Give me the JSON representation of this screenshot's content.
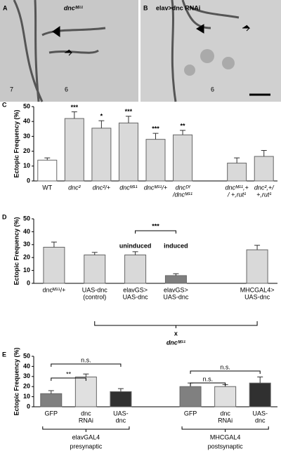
{
  "images": [
    {
      "letter": "A",
      "label": "dncᴹ¹¹",
      "segments": [
        "7",
        "6"
      ]
    },
    {
      "letter": "B",
      "label": "elav>dnc RNAi",
      "segments": [
        "6"
      ]
    }
  ],
  "chart_data": [
    {
      "type": "bar",
      "panel": "C",
      "ylabel": "Ectopic Frequency (%)",
      "categories": [
        [
          "WT"
        ],
        [
          "dnc²"
        ],
        [
          "dnc²/+"
        ],
        [
          "dncᴹ¹¹"
        ],
        [
          "dncᴹ¹¹/+"
        ],
        [
          "dncᴰᶠ",
          "/dncᴹ¹¹"
        ],
        null,
        [
          "dncᴹ¹¹,+",
          "/ +,rut¹"
        ],
        [
          "dnc²,+/",
          "+,rut¹"
        ]
      ],
      "values": [
        14,
        42,
        35.5,
        39,
        28,
        31,
        null,
        12,
        16.5
      ],
      "errors": [
        1.5,
        4.5,
        5,
        4.5,
        4,
        3,
        null,
        3.5,
        4
      ],
      "colors": [
        "#ffffff",
        "#d9d9d9",
        "#d9d9d9",
        "#d9d9d9",
        "#d9d9d9",
        "#d9d9d9",
        null,
        "#d9d9d9",
        "#d9d9d9"
      ],
      "significance": [
        null,
        "***",
        "*",
        "***",
        "***",
        "**",
        null,
        null,
        null
      ],
      "ylim": [
        0,
        50
      ],
      "yticks": [
        0,
        10,
        20,
        30,
        40,
        50
      ]
    },
    {
      "type": "bar",
      "panel": "D",
      "ylabel": "Ectopic Frequency (%)",
      "categories": [
        [
          "dncᴹ¹¹/+"
        ],
        [
          "UAS-dnc",
          "(control)"
        ],
        [
          "elavGS>",
          "UAS-dnc"
        ],
        [
          "elavGS>",
          "UAS-dnc"
        ],
        null,
        [
          "MHCGAL4>",
          "UAS-dnc"
        ]
      ],
      "values": [
        28,
        22,
        22,
        6,
        null,
        26
      ],
      "errors": [
        4,
        2,
        2.5,
        1.5,
        null,
        3.5
      ],
      "colors": [
        "#d9d9d9",
        "#d9d9d9",
        "#d9d9d9",
        "#7f7f7f",
        null,
        "#d9d9d9"
      ],
      "annotations": [
        "***"
      ],
      "condition_labels": [
        "uninduced",
        "induced"
      ],
      "cross": "x",
      "cross_genotype": "dncᴹ¹¹",
      "ylim": [
        0,
        50
      ],
      "yticks": [
        0,
        10,
        20,
        30,
        40,
        50
      ]
    },
    {
      "type": "bar",
      "panel": "E",
      "ylabel": "Ectopic Frequency (%)",
      "categories": [
        [
          "GFP"
        ],
        [
          "dnc",
          "RNAi"
        ],
        [
          "UAS-",
          "dnc"
        ],
        null,
        [
          "GFP"
        ],
        [
          "dnc",
          "RNAi"
        ],
        [
          "UAS-",
          "dnc"
        ]
      ],
      "values": [
        13,
        29.5,
        15,
        null,
        20,
        20,
        23.5
      ],
      "errors": [
        3,
        3,
        3,
        null,
        3.5,
        2,
        6
      ],
      "colors": [
        "#808080",
        "#e0e0e0",
        "#303030",
        null,
        "#808080",
        "#e0e0e0",
        "#303030"
      ],
      "comparisons": [
        "n.s.",
        "**",
        "n.s.",
        "n.s."
      ],
      "groups": [
        {
          "driver": "elavGAL4",
          "side": "presynaptic"
        },
        {
          "driver": "MHCGAL4",
          "side": "postsynaptic"
        }
      ],
      "ylim": [
        0,
        50
      ],
      "yticks": [
        0,
        10,
        20,
        30,
        40,
        50
      ]
    }
  ]
}
